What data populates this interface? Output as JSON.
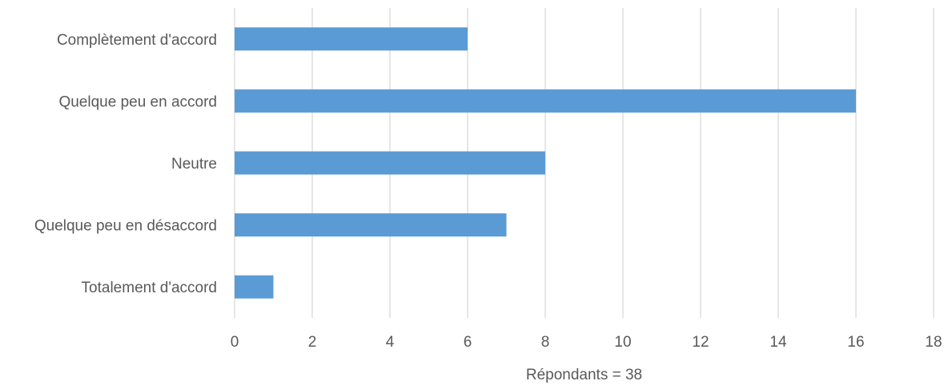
{
  "chart_data": {
    "type": "bar",
    "orientation": "horizontal",
    "categories": [
      "Complètement d'accord",
      "Quelque peu en accord",
      "Neutre",
      "Quelque peu en désaccord",
      "Totalement d'accord"
    ],
    "values": [
      6,
      16,
      8,
      7,
      1
    ],
    "xlabel": "Répondants = 38",
    "ylabel": "",
    "xlim": [
      0,
      18
    ],
    "xticks": [
      0,
      2,
      4,
      6,
      8,
      10,
      12,
      14,
      16,
      18
    ],
    "grid": "vertical",
    "legend": "none",
    "colors": {
      "bar": "#5b9bd5",
      "grid": "#d9d9d9",
      "text": "#595959"
    }
  }
}
